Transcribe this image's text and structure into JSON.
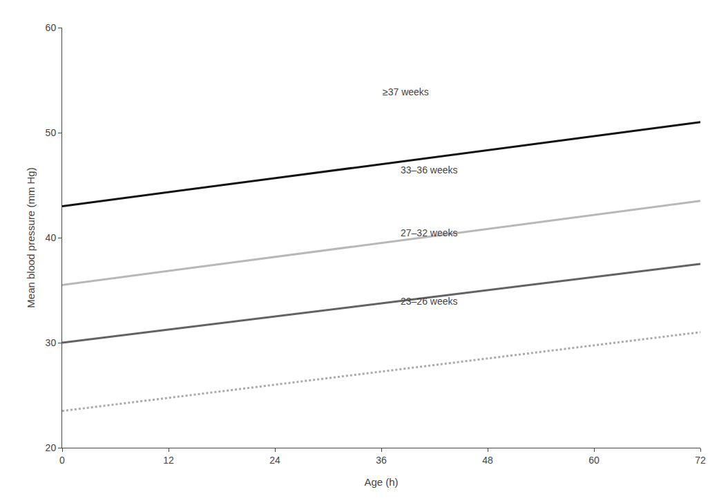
{
  "chart_data": {
    "type": "line",
    "x_label": "Age (h)",
    "y_label": "Mean blood pressure (mm Hg)",
    "x": [
      0,
      72
    ],
    "series": [
      {
        "color": "#111111",
        "line_style": "solid",
        "values": [
          43,
          51
        ]
      },
      {
        "color": "#b8b8b8",
        "line_style": "solid",
        "values": [
          35.5,
          43.5
        ]
      },
      {
        "color": "#636363",
        "line_style": "solid",
        "values": [
          30,
          37.5
        ]
      },
      {
        "color": "#aaaaaa",
        "line_style": "dotted",
        "values": [
          23.5,
          31
        ]
      }
    ],
    "annotations": [
      {
        "text": "≥37 weeks",
        "x": 36,
        "y": 53.2
      },
      {
        "text": "33–36 weeks",
        "x": 38,
        "y": 45.8
      },
      {
        "text": "27–32 weeks",
        "x": 38,
        "y": 39.8
      },
      {
        "text": "23–26 weeks",
        "x": 38,
        "y": 33.3
      }
    ],
    "xlim": [
      0,
      72
    ],
    "ylim": [
      20,
      60
    ],
    "xticks": [
      0,
      12,
      24,
      36,
      48,
      60,
      72
    ],
    "yticks": [
      20,
      30,
      40,
      50,
      60
    ],
    "grid": false
  }
}
